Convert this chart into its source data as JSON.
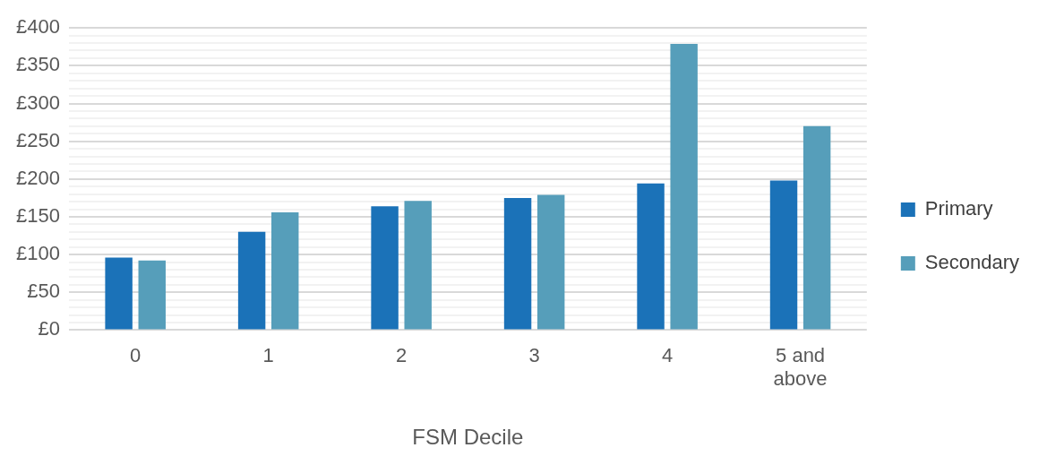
{
  "chart_data": {
    "type": "bar",
    "xlabel": "FSM Decile",
    "categories": [
      "0",
      "1",
      "2",
      "3",
      "4",
      "5 and above"
    ],
    "series": [
      {
        "name": "Primary",
        "color": "#1b72b8",
        "values": [
          96,
          130,
          164,
          175,
          194,
          198
        ]
      },
      {
        "name": "Secondary",
        "color": "#569eba",
        "values": [
          92,
          156,
          171,
          179,
          379,
          270
        ]
      }
    ],
    "ylim": [
      0,
      400
    ],
    "yticks": [
      {
        "value": 0,
        "label": "£0"
      },
      {
        "value": 10,
        "label": null
      },
      {
        "value": 20,
        "label": null
      },
      {
        "value": 30,
        "label": null
      },
      {
        "value": 40,
        "label": null
      },
      {
        "value": 50,
        "label": "£50"
      },
      {
        "value": 60,
        "label": null
      },
      {
        "value": 70,
        "label": null
      },
      {
        "value": 80,
        "label": null
      },
      {
        "value": 90,
        "label": null
      },
      {
        "value": 100,
        "label": "£100"
      },
      {
        "value": 110,
        "label": null
      },
      {
        "value": 120,
        "label": null
      },
      {
        "value": 130,
        "label": null
      },
      {
        "value": 140,
        "label": null
      },
      {
        "value": 150,
        "label": "£150"
      },
      {
        "value": 160,
        "label": null
      },
      {
        "value": 170,
        "label": null
      },
      {
        "value": 180,
        "label": null
      },
      {
        "value": 190,
        "label": null
      },
      {
        "value": 200,
        "label": "£200"
      },
      {
        "value": 210,
        "label": null
      },
      {
        "value": 220,
        "label": null
      },
      {
        "value": 230,
        "label": null
      },
      {
        "value": 240,
        "label": null
      },
      {
        "value": 250,
        "label": "£250"
      },
      {
        "value": 260,
        "label": null
      },
      {
        "value": 270,
        "label": null
      },
      {
        "value": 280,
        "label": null
      },
      {
        "value": 290,
        "label": null
      },
      {
        "value": 300,
        "label": "£300"
      },
      {
        "value": 310,
        "label": null
      },
      {
        "value": 320,
        "label": null
      },
      {
        "value": 330,
        "label": null
      },
      {
        "value": 340,
        "label": null
      },
      {
        "value": 350,
        "label": "£350"
      },
      {
        "value": 360,
        "label": null
      },
      {
        "value": 370,
        "label": null
      },
      {
        "value": 380,
        "label": null
      },
      {
        "value": 390,
        "label": null
      },
      {
        "value": 400,
        "label": "£400"
      }
    ],
    "grid": "y",
    "legend": "right"
  }
}
